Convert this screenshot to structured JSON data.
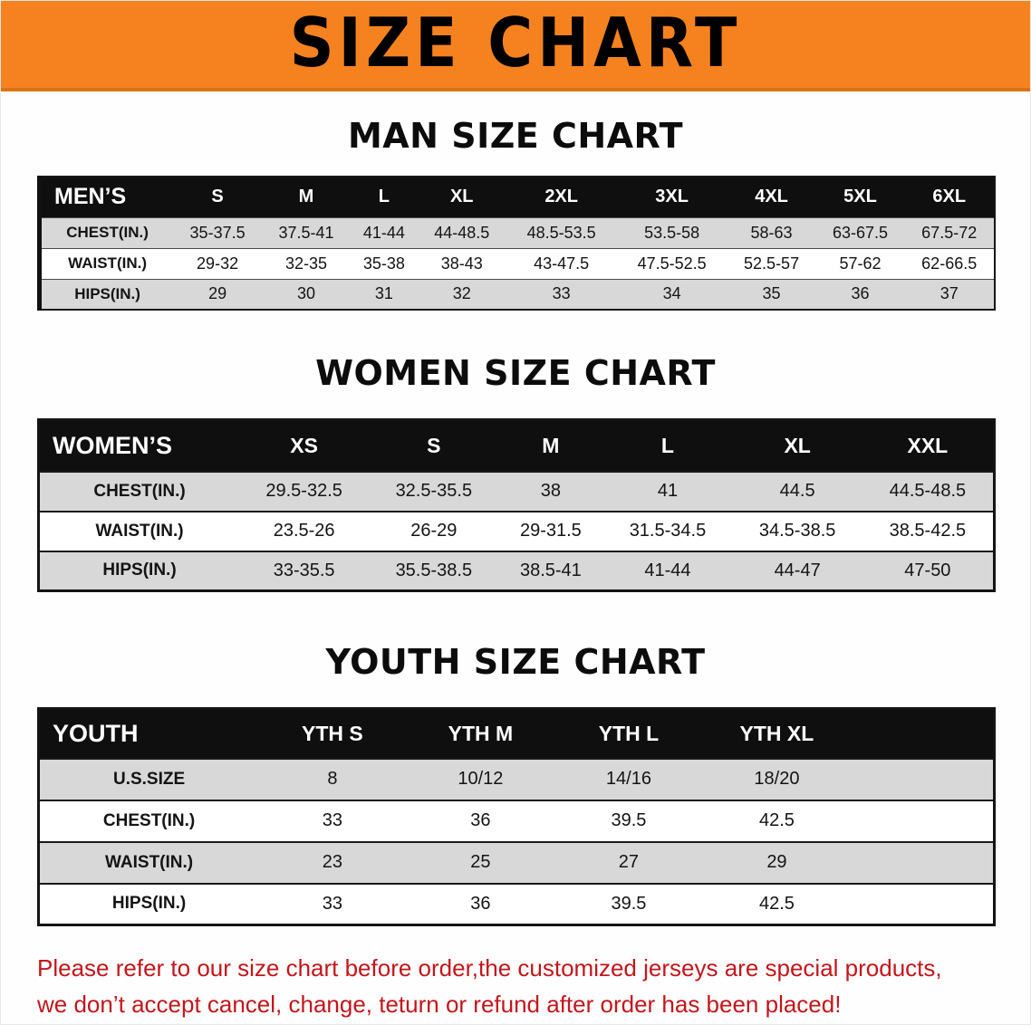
{
  "banner": {
    "title": "SIZE CHART",
    "background_color": "#f5821f",
    "text_color": "#000000"
  },
  "sections": {
    "men": {
      "heading": "MAN SIZE CHART",
      "table": {
        "header": [
          "MEN’S",
          "S",
          "M",
          "L",
          "XL",
          "2XL",
          "3XL",
          "4XL",
          "5XL",
          "6XL"
        ],
        "rows": [
          [
            "CHEST(IN.)",
            "35-37.5",
            "37.5-41",
            "41-44",
            "44-48.5",
            "48.5-53.5",
            "53.5-58",
            "58-63",
            "63-67.5",
            "67.5-72"
          ],
          [
            "WAIST(IN.)",
            "29-32",
            "32-35",
            "35-38",
            "38-43",
            "43-47.5",
            "47.5-52.5",
            "52.5-57",
            "57-62",
            "62-66.5"
          ],
          [
            "HIPS(IN.)",
            "29",
            "30",
            "31",
            "32",
            "33",
            "34",
            "35",
            "36",
            "37"
          ]
        ]
      }
    },
    "women": {
      "heading": "WOMEN SIZE CHART",
      "table": {
        "header": [
          "WOMEN’S",
          "XS",
          "S",
          "M",
          "L",
          "XL",
          "XXL"
        ],
        "rows": [
          [
            "CHEST(IN.)",
            "29.5-32.5",
            "32.5-35.5",
            "38",
            "41",
            "44.5",
            "44.5-48.5"
          ],
          [
            "WAIST(IN.)",
            "23.5-26",
            "26-29",
            "29-31.5",
            "31.5-34.5",
            "34.5-38.5",
            "38.5-42.5"
          ],
          [
            "HIPS(IN.)",
            "33-35.5",
            "35.5-38.5",
            "38.5-41",
            "41-44",
            "44-47",
            "47-50"
          ]
        ]
      }
    },
    "youth": {
      "heading": "YOUTH SIZE CHART",
      "table": {
        "header": [
          "YOUTH",
          "YTH S",
          "YTH M",
          "YTH L",
          "YTH XL"
        ],
        "rows": [
          [
            "U.S.SIZE",
            "8",
            "10/12",
            "14/16",
            "18/20"
          ],
          [
            "CHEST(IN.)",
            "33",
            "36",
            "39.5",
            "42.5"
          ],
          [
            "WAIST(IN.)",
            "23",
            "25",
            "27",
            "29"
          ],
          [
            "HIPS(IN.)",
            "33",
            "36",
            "39.5",
            "42.5"
          ]
        ]
      }
    }
  },
  "disclaimer": {
    "line1": "Please refer to our size chart before order,the customized jerseys are special products,",
    "line2": "we don’t accept cancel, change, teturn or refund after order has been placed!",
    "text_color": "#c3161c"
  }
}
